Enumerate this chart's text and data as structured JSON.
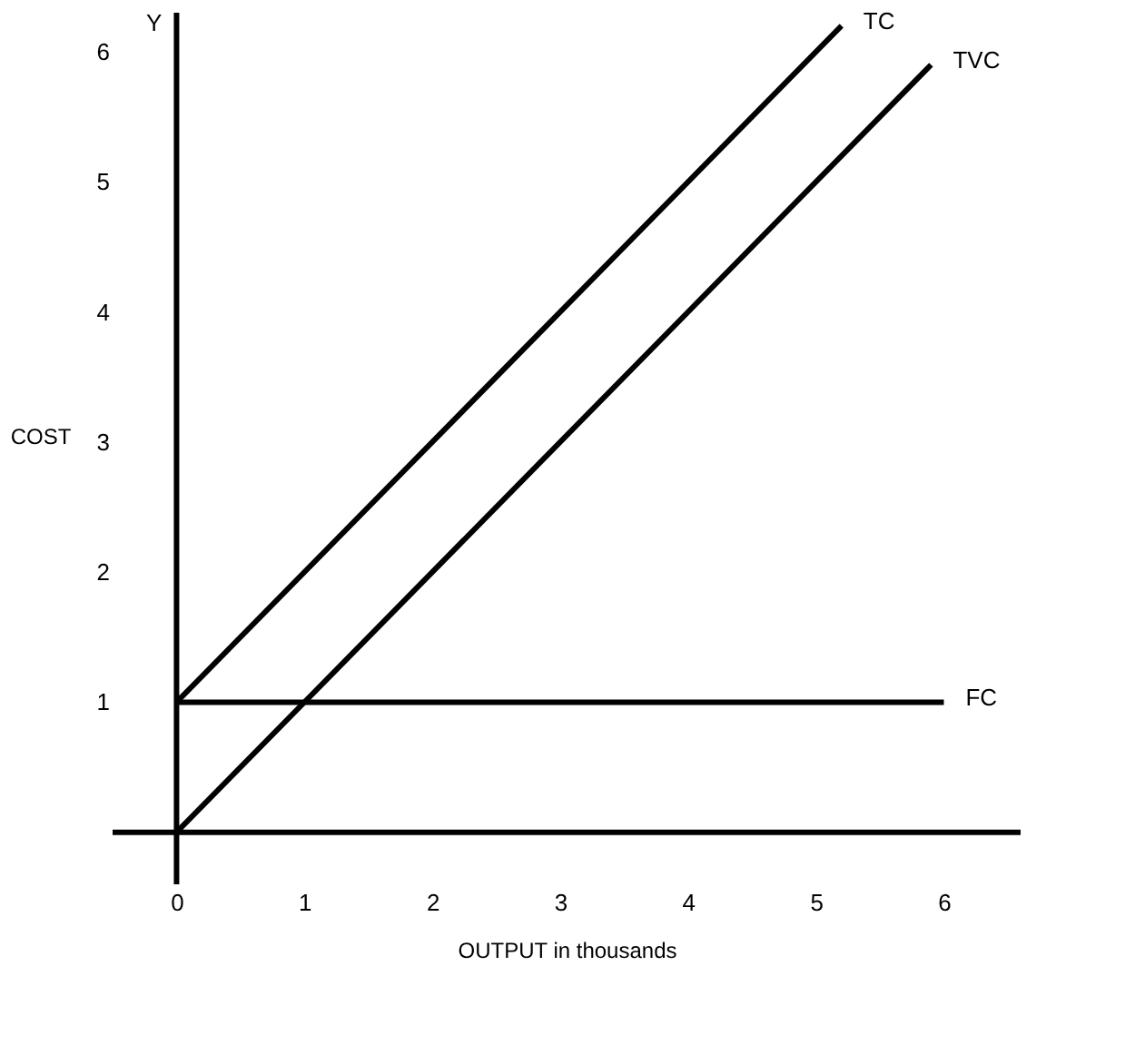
{
  "chart_data": {
    "type": "line",
    "xlabel": "OUTPUT in thousands",
    "ylabel": "COST",
    "annotations": [
      "Y"
    ],
    "xlim": [
      -0.5,
      6.6
    ],
    "ylim": [
      -0.4,
      6.3
    ],
    "xticks": [
      0,
      1,
      2,
      3,
      4,
      5,
      6
    ],
    "yticks": [
      1,
      2,
      3,
      4,
      5,
      6
    ],
    "grid": false,
    "legend": false,
    "marker": "none",
    "line_style": "solid",
    "series": [
      {
        "name": "TC",
        "color": "#000000",
        "x": [
          0,
          5.2
        ],
        "values": [
          1,
          6.2
        ]
      },
      {
        "name": "TVC",
        "color": "#000000",
        "x": [
          0,
          5.9
        ],
        "values": [
          0,
          5.9
        ]
      },
      {
        "name": "FC",
        "color": "#000000",
        "x": [
          0,
          6
        ],
        "values": [
          1,
          1
        ]
      }
    ]
  }
}
